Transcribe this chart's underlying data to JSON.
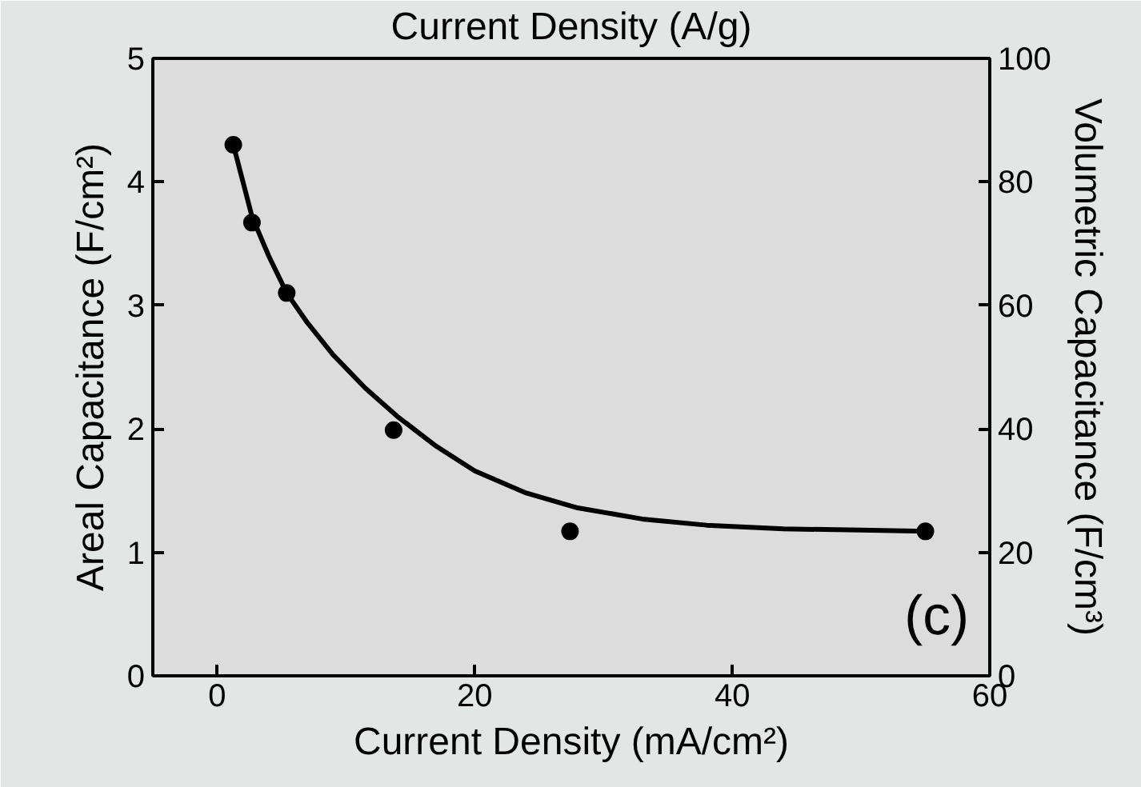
{
  "chart_data": {
    "type": "scatter",
    "xlabel": "Current Density (mA/cm²)",
    "ylabel": "Areal Capacitance (F/cm²)",
    "y2label": "Volumetric Capacitance (F/cm³)",
    "x2label": "Current Density (A/g)",
    "xlim": [
      -5,
      60
    ],
    "xticks": [
      0,
      20,
      40,
      60
    ],
    "ylim": [
      0,
      5
    ],
    "yticks": [
      0,
      1,
      2,
      3,
      4,
      5
    ],
    "y2lim": [
      0,
      100
    ],
    "y2ticks": [
      0,
      20,
      40,
      60,
      80,
      100
    ],
    "marker": "circle",
    "grid": false,
    "annotations": [
      "(c)"
    ],
    "series": [
      {
        "color": "#000000",
        "x": [
          1.25,
          2.7,
          5.4,
          13.7,
          27.4,
          55
        ],
        "values": [
          4.3,
          3.67,
          3.1,
          1.99,
          1.17,
          1.17
        ]
      },
      {
        "type": "line",
        "color": "#000000",
        "marker": "none",
        "x": [
          1.25,
          2.7,
          4,
          5.4,
          7,
          9,
          11.5,
          14,
          17,
          20,
          24,
          28,
          33,
          38,
          44,
          50,
          55
        ],
        "values": [
          4.3,
          3.72,
          3.4,
          3.1,
          2.86,
          2.6,
          2.33,
          2.1,
          1.86,
          1.66,
          1.48,
          1.36,
          1.27,
          1.22,
          1.19,
          1.18,
          1.17
        ]
      }
    ]
  }
}
